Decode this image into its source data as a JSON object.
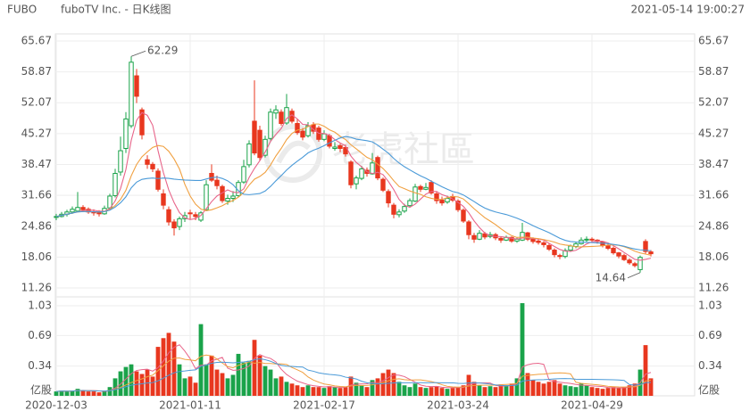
{
  "chart_data": {
    "type": "candlestick",
    "title": "FUBO",
    "subtitle": "fuboTV Inc. - 日K线图",
    "timestamp": "2021-05-14 19:00:27",
    "watermark": "老虎社區",
    "up_color": "#1aa34a",
    "down_color": "#e8371f",
    "grid": true,
    "categories": [
      "2020-12-03",
      null,
      null,
      null,
      null,
      null,
      null,
      null,
      null,
      null,
      null,
      null,
      null,
      null,
      null,
      null,
      null,
      null,
      null,
      null,
      null,
      null,
      null,
      null,
      null,
      "2021-01-11",
      null,
      null,
      null,
      null,
      null,
      null,
      null,
      null,
      null,
      null,
      null,
      null,
      null,
      null,
      null,
      null,
      null,
      null,
      null,
      null,
      null,
      null,
      null,
      null,
      "2021-02-17",
      null,
      null,
      null,
      null,
      null,
      null,
      null,
      null,
      null,
      null,
      null,
      null,
      null,
      null,
      null,
      null,
      null,
      null,
      null,
      null,
      null,
      null,
      null,
      null,
      "2021-03-24",
      null,
      null,
      null,
      null,
      null,
      null,
      null,
      null,
      null,
      null,
      null,
      null,
      null,
      null,
      null,
      null,
      null,
      null,
      null,
      null,
      null,
      null,
      null,
      null,
      "2021-04-29",
      null,
      null,
      null,
      null,
      null,
      null,
      null,
      null,
      null,
      null,
      null
    ],
    "ohlc": [
      [
        26.8,
        27.6,
        26.2,
        27.0
      ],
      [
        27.0,
        28.0,
        26.8,
        27.5
      ],
      [
        27.5,
        28.5,
        27.0,
        28.0
      ],
      [
        28.0,
        29.2,
        27.6,
        28.6
      ],
      [
        28.2,
        32.4,
        28.0,
        29.0
      ],
      [
        29.0,
        29.5,
        28.0,
        28.5
      ],
      [
        28.6,
        29.0,
        27.6,
        28.0
      ],
      [
        28.0,
        28.6,
        27.2,
        27.8
      ],
      [
        27.9,
        28.4,
        27.0,
        27.6
      ],
      [
        27.6,
        29.4,
        27.4,
        28.8
      ],
      [
        28.9,
        32.0,
        28.6,
        31.5
      ],
      [
        31.6,
        37.5,
        31.2,
        36.5
      ],
      [
        36.8,
        44.6,
        36.0,
        41.5
      ],
      [
        42.0,
        50.0,
        41.0,
        48.5
      ],
      [
        47.0,
        62.29,
        46.5,
        61.0
      ],
      [
        58.0,
        59.5,
        52.0,
        53.5
      ],
      [
        50.5,
        51.0,
        44.0,
        45.0
      ],
      [
        39.5,
        40.5,
        37.5,
        38.5
      ],
      [
        38.5,
        39.0,
        36.8,
        37.5
      ],
      [
        37.0,
        37.6,
        32.5,
        33.0
      ],
      [
        32.0,
        33.0,
        28.6,
        29.5
      ],
      [
        28.5,
        29.2,
        25.0,
        25.8
      ],
      [
        25.8,
        26.4,
        22.8,
        24.5
      ],
      [
        24.8,
        27.0,
        24.0,
        26.5
      ],
      [
        26.5,
        28.0,
        25.8,
        27.2
      ],
      [
        27.8,
        28.5,
        26.4,
        27.6
      ],
      [
        27.4,
        28.0,
        26.2,
        27.0
      ],
      [
        26.2,
        28.2,
        25.8,
        27.8
      ],
      [
        28.5,
        35.0,
        28.2,
        34.0
      ],
      [
        36.5,
        38.5,
        34.6,
        35.0
      ],
      [
        35.0,
        36.0,
        33.0,
        33.8
      ],
      [
        33.6,
        34.0,
        30.0,
        30.5
      ],
      [
        30.4,
        31.8,
        29.6,
        31.0
      ],
      [
        31.0,
        32.6,
        30.2,
        31.5
      ],
      [
        31.6,
        35.0,
        31.2,
        34.5
      ],
      [
        34.6,
        39.5,
        34.2,
        38.0
      ],
      [
        38.4,
        43.8,
        37.8,
        43.0
      ],
      [
        48.0,
        57.0,
        40.5,
        41.0
      ],
      [
        46.0,
        47.0,
        39.2,
        40.0
      ],
      [
        40.5,
        44.8,
        40.0,
        44.0
      ],
      [
        44.2,
        50.8,
        43.8,
        50.0
      ],
      [
        49.8,
        51.5,
        48.5,
        50.5
      ],
      [
        50.0,
        50.6,
        47.0,
        47.5
      ],
      [
        47.6,
        54.0,
        47.2,
        51.0
      ],
      [
        50.2,
        50.8,
        47.5,
        48.0
      ],
      [
        47.5,
        48.4,
        45.0,
        45.5
      ],
      [
        45.8,
        46.5,
        43.8,
        44.5
      ],
      [
        44.8,
        47.8,
        44.4,
        47.0
      ],
      [
        47.2,
        47.8,
        45.2,
        45.8
      ],
      [
        46.5,
        47.0,
        43.5,
        44.0
      ],
      [
        44.0,
        46.0,
        43.6,
        45.2
      ],
      [
        44.8,
        45.2,
        42.0,
        42.5
      ],
      [
        42.0,
        43.4,
        41.5,
        42.3
      ],
      [
        42.6,
        43.0,
        41.2,
        42.0
      ],
      [
        42.2,
        42.8,
        40.2,
        40.8
      ],
      [
        39.0,
        39.4,
        33.2,
        34.0
      ],
      [
        34.2,
        36.0,
        33.0,
        35.5
      ],
      [
        35.4,
        38.2,
        35.0,
        37.5
      ],
      [
        37.2,
        37.8,
        35.8,
        36.5
      ],
      [
        36.4,
        41.0,
        36.2,
        38.8
      ],
      [
        40.0,
        40.4,
        35.0,
        35.5
      ],
      [
        35.2,
        35.6,
        32.4,
        32.8
      ],
      [
        32.5,
        33.0,
        29.0,
        30.0
      ],
      [
        29.5,
        30.0,
        26.6,
        27.5
      ],
      [
        27.4,
        28.6,
        26.8,
        28.0
      ],
      [
        28.2,
        29.8,
        27.8,
        29.2
      ],
      [
        29.4,
        31.0,
        29.0,
        30.5
      ],
      [
        30.4,
        34.2,
        30.2,
        33.5
      ],
      [
        33.6,
        34.0,
        32.4,
        33.0
      ],
      [
        33.0,
        34.4,
        32.8,
        33.4
      ],
      [
        34.5,
        35.0,
        31.8,
        32.2
      ],
      [
        32.0,
        32.5,
        29.8,
        30.5
      ],
      [
        30.6,
        31.4,
        29.4,
        30.0
      ],
      [
        30.2,
        31.6,
        29.8,
        31.0
      ],
      [
        31.4,
        32.0,
        30.2,
        30.6
      ],
      [
        30.4,
        30.8,
        28.0,
        28.5
      ],
      [
        28.4,
        28.8,
        25.6,
        26.0
      ],
      [
        25.8,
        26.2,
        22.0,
        23.0
      ],
      [
        22.8,
        23.4,
        21.2,
        22.0
      ],
      [
        22.0,
        24.0,
        21.8,
        23.3
      ],
      [
        23.2,
        23.6,
        22.0,
        22.5
      ],
      [
        22.6,
        23.6,
        22.2,
        23.0
      ],
      [
        23.0,
        23.4,
        21.8,
        22.3
      ],
      [
        22.2,
        22.6,
        21.2,
        21.8
      ],
      [
        21.8,
        22.8,
        21.6,
        22.4
      ],
      [
        22.4,
        22.6,
        21.2,
        21.6
      ],
      [
        21.6,
        22.4,
        21.2,
        22.0
      ],
      [
        21.8,
        25.6,
        21.6,
        23.5
      ],
      [
        23.4,
        23.6,
        21.6,
        22.0
      ],
      [
        22.0,
        22.4,
        21.0,
        21.5
      ],
      [
        21.6,
        22.0,
        20.8,
        21.3
      ],
      [
        21.2,
        21.6,
        20.2,
        20.8
      ],
      [
        20.6,
        21.0,
        19.4,
        19.8
      ],
      [
        19.6,
        20.0,
        18.0,
        18.6
      ],
      [
        18.4,
        18.8,
        17.6,
        18.2
      ],
      [
        18.2,
        20.0,
        17.8,
        19.5
      ],
      [
        19.6,
        20.8,
        19.2,
        20.5
      ],
      [
        20.4,
        21.4,
        20.0,
        21.0
      ],
      [
        21.0,
        22.4,
        20.8,
        21.8
      ],
      [
        21.9,
        22.6,
        21.4,
        22.0
      ],
      [
        22.0,
        22.4,
        21.2,
        21.8
      ],
      [
        21.8,
        22.0,
        21.0,
        21.5
      ],
      [
        21.4,
        21.6,
        20.2,
        20.6
      ],
      [
        20.6,
        21.0,
        19.6,
        20.0
      ],
      [
        20.0,
        20.4,
        18.6,
        19.0
      ],
      [
        19.0,
        19.2,
        17.8,
        18.3
      ],
      [
        18.4,
        18.8,
        17.2,
        17.5
      ],
      [
        17.4,
        17.8,
        16.4,
        16.8
      ],
      [
        16.6,
        17.0,
        15.8,
        16.2
      ],
      [
        15.3,
        18.4,
        14.64,
        18.0
      ],
      [
        21.5,
        22.0,
        18.8,
        19.3
      ],
      [
        19.2,
        19.6,
        18.2,
        18.8
      ]
    ],
    "volume": [
      0.05,
      0.06,
      0.05,
      0.06,
      0.08,
      0.06,
      0.05,
      0.05,
      0.04,
      0.05,
      0.1,
      0.2,
      0.28,
      0.33,
      0.36,
      0.28,
      0.25,
      0.3,
      0.22,
      0.56,
      0.66,
      0.72,
      0.62,
      0.36,
      0.2,
      0.22,
      0.15,
      0.82,
      0.36,
      0.46,
      0.3,
      0.26,
      0.2,
      0.24,
      0.48,
      0.38,
      0.4,
      0.64,
      0.46,
      0.34,
      0.3,
      0.2,
      0.22,
      0.16,
      0.14,
      0.12,
      0.1,
      0.12,
      0.1,
      0.1,
      0.09,
      0.11,
      0.1,
      0.09,
      0.1,
      0.22,
      0.15,
      0.12,
      0.1,
      0.18,
      0.2,
      0.26,
      0.3,
      0.26,
      0.16,
      0.12,
      0.1,
      0.14,
      0.1,
      0.09,
      0.1,
      0.11,
      0.09,
      0.08,
      0.09,
      0.1,
      0.12,
      0.24,
      0.16,
      0.12,
      0.1,
      0.11,
      0.1,
      0.13,
      0.12,
      0.14,
      0.2,
      1.06,
      0.26,
      0.18,
      0.16,
      0.14,
      0.16,
      0.18,
      0.14,
      0.12,
      0.11,
      0.1,
      0.14,
      0.12,
      0.1,
      0.09,
      0.08,
      0.09,
      0.1,
      0.09,
      0.1,
      0.12,
      0.14,
      0.3,
      0.58,
      0.2
    ],
    "moving_averages": [
      {
        "period": 5,
        "color": "#e8658a"
      },
      {
        "period": 10,
        "color": "#f0a040"
      },
      {
        "period": 20,
        "color": "#4a9ad8"
      }
    ],
    "ylim": [
      11.26,
      65.67
    ],
    "yticks": [
      65.67,
      58.87,
      52.07,
      45.27,
      38.47,
      31.66,
      24.86,
      18.06,
      11.26
    ],
    "volume_ylim": [
      0,
      1.03
    ],
    "volume_yticks": [
      1.03,
      0.69,
      0.34,
      {
        "value": 0,
        "label": "亿股"
      }
    ]
  }
}
